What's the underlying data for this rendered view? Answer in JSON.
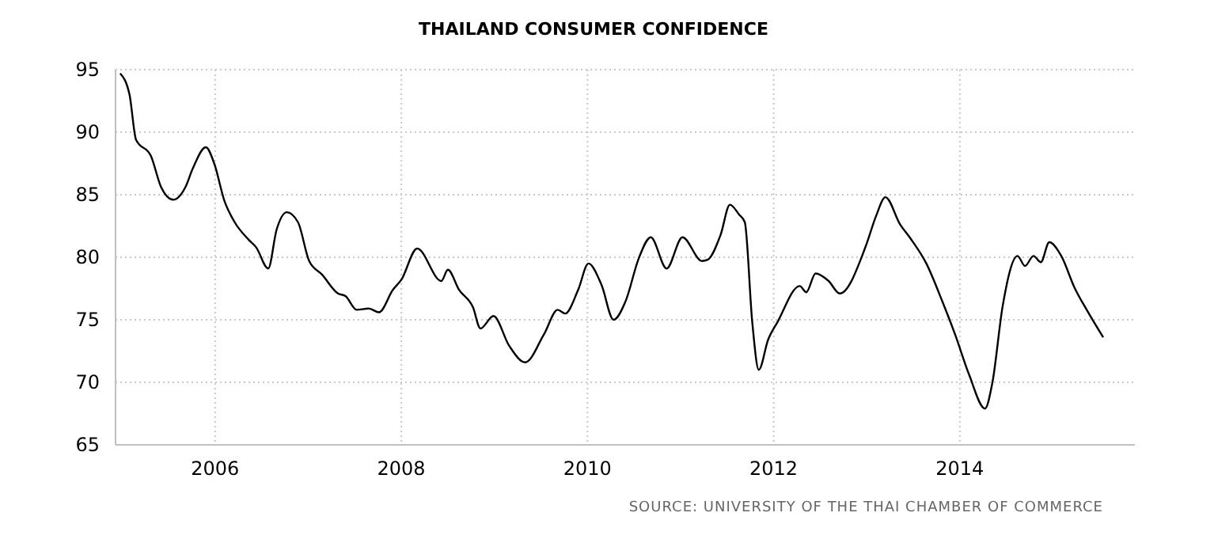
{
  "chart_data": {
    "type": "line",
    "title": "THAILAND CONSUMER CONFIDENCE",
    "annotations": [
      "SOURCE: UNIVERSITY OF THE THAI CHAMBER OF COMMERCE"
    ],
    "x": [
      2004.98,
      2005.08,
      2005.15,
      2005.31,
      2005.42,
      2005.55,
      2005.68,
      2005.76,
      2005.9,
      2005.99,
      2006.1,
      2006.21,
      2006.36,
      2006.44,
      2006.57,
      2006.66,
      2006.77,
      2006.89,
      2007.01,
      2007.15,
      2007.32,
      2007.4,
      2007.52,
      2007.65,
      2007.76,
      2007.91,
      2008.0,
      2008.17,
      2008.43,
      2008.5,
      2008.62,
      2008.77,
      2008.85,
      2008.99,
      2009.16,
      2009.33,
      2009.53,
      2009.68,
      2009.76,
      2009.9,
      2010.01,
      2010.15,
      2010.28,
      2010.41,
      2010.55,
      2010.68,
      2010.85,
      2011.02,
      2011.23,
      2011.29,
      2011.43,
      2011.53,
      2011.63,
      2011.69,
      2011.77,
      2011.84,
      2011.94,
      2012.04,
      2012.28,
      2012.35,
      2012.45,
      2012.59,
      2012.71,
      2012.99,
      2013.1,
      2013.2,
      2013.36,
      2013.47,
      2013.64,
      2013.81,
      2013.95,
      2014.1,
      2014.27,
      2014.35,
      2014.46,
      2014.62,
      2014.7,
      2014.79,
      2014.87,
      2014.96,
      2015.09,
      2015.23,
      2015.37,
      2015.54
    ],
    "series": [
      {
        "color": "#000000",
        "values": [
          94.7,
          93.0,
          89.4,
          88.1,
          85.6,
          84.6,
          85.6,
          87.1,
          88.8,
          87.5,
          84.5,
          82.8,
          81.4,
          80.8,
          79.1,
          82.2,
          83.6,
          82.8,
          79.7,
          78.6,
          77.1,
          76.9,
          75.8,
          75.9,
          75.6,
          77.4,
          78.2,
          80.7,
          78.1,
          79.0,
          77.4,
          76.0,
          74.3,
          75.3,
          72.9,
          71.6,
          73.8,
          75.8,
          75.5,
          77.4,
          79.5,
          77.8,
          75.0,
          76.5,
          79.9,
          81.6,
          79.1,
          81.6,
          79.7,
          79.8,
          81.8,
          84.2,
          83.4,
          82.8,
          74.8,
          71.0,
          73.4,
          74.8,
          77.7,
          77.2,
          78.7,
          78.1,
          77.1,
          80.9,
          83.3,
          84.8,
          82.6,
          81.5,
          79.5,
          76.5,
          73.8,
          70.6,
          67.9,
          70.0,
          76.1,
          80.1,
          79.3,
          80.1,
          79.6,
          81.2,
          80.1,
          77.6,
          75.7,
          73.6
        ]
      }
    ],
    "xlim": [
      2004.93,
      2015.88
    ],
    "xticks": [
      2006,
      2008,
      2010,
      2012,
      2014
    ],
    "ylim": [
      65,
      95
    ],
    "yticks": [
      65,
      70,
      75,
      80,
      85,
      90,
      95
    ],
    "grid": true,
    "marker": "none",
    "line_style": "solid"
  }
}
